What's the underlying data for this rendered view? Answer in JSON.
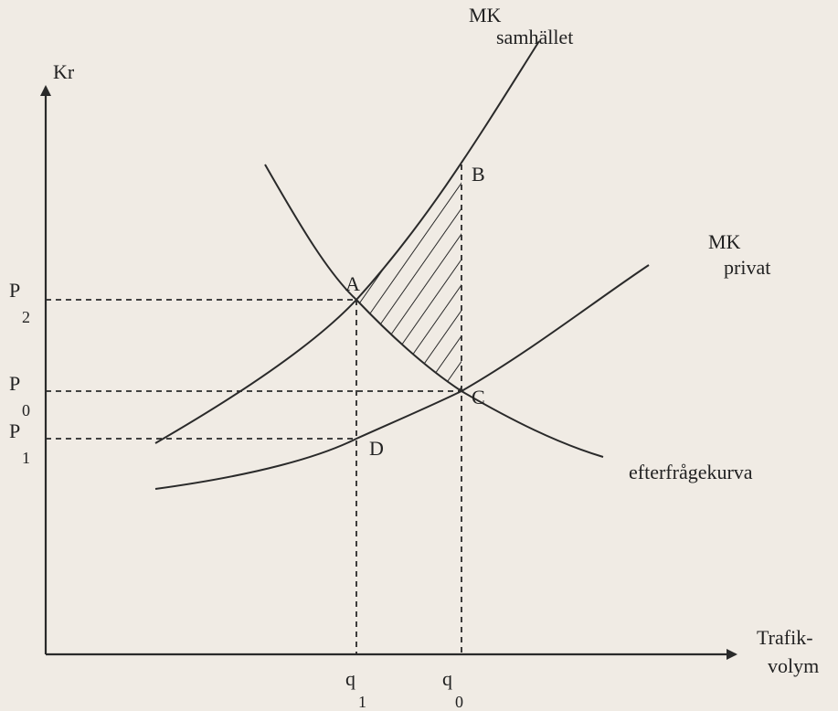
{
  "axes": {
    "y_label": "Kr",
    "x_label": [
      "Trafik-",
      "volym"
    ]
  },
  "curves": {
    "mk_social": [
      "MK",
      "samhället"
    ],
    "mk_private": [
      "MK",
      "privat"
    ],
    "demand": "efterfrågekurva"
  },
  "prices": [
    {
      "symbol": "P",
      "subscript": "2"
    },
    {
      "symbol": "P",
      "subscript": "0"
    },
    {
      "symbol": "P",
      "subscript": "1"
    }
  ],
  "quantities": [
    {
      "symbol": "q",
      "subscript": "1"
    },
    {
      "symbol": "q",
      "subscript": "0"
    }
  ],
  "points": [
    "A",
    "B",
    "C",
    "D"
  ]
}
